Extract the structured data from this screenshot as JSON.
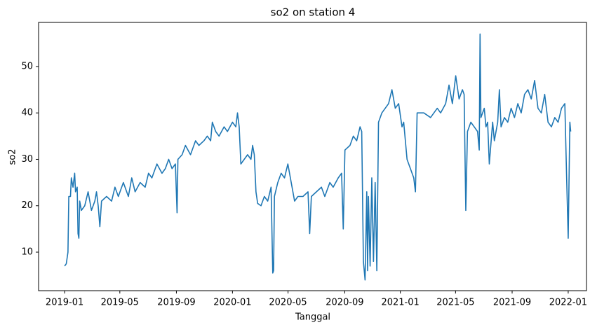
{
  "chart_data": {
    "type": "line",
    "title": "so2 on station 4",
    "x_label": "Tanggal",
    "y_label": "so2",
    "x": [
      2019.0,
      2019.01,
      2019.02,
      2019.025,
      2019.035,
      2019.04,
      2019.05,
      2019.06,
      2019.065,
      2019.075,
      2019.08,
      2019.085,
      2019.09,
      2019.1,
      2019.12,
      2019.14,
      2019.16,
      2019.18,
      2019.19,
      2019.2,
      2019.21,
      2019.22,
      2019.25,
      2019.28,
      2019.3,
      2019.32,
      2019.35,
      2019.38,
      2019.4,
      2019.42,
      2019.45,
      2019.48,
      2019.5,
      2019.52,
      2019.55,
      2019.58,
      2019.6,
      2019.62,
      2019.64,
      2019.66,
      2019.67,
      2019.675,
      2019.7,
      2019.72,
      2019.75,
      2019.78,
      2019.8,
      2019.83,
      2019.85,
      2019.87,
      2019.88,
      2019.9,
      2019.92,
      2019.95,
      2019.97,
      2020.0,
      2020.02,
      2020.03,
      2020.04,
      2020.05,
      2020.07,
      2020.09,
      2020.11,
      2020.12,
      2020.13,
      2020.14,
      2020.15,
      2020.17,
      2020.19,
      2020.21,
      2020.23,
      2020.24,
      2020.245,
      2020.25,
      2020.27,
      2020.29,
      2020.31,
      2020.33,
      2020.35,
      2020.37,
      2020.39,
      2020.42,
      2020.45,
      2020.46,
      2020.47,
      2020.5,
      2020.53,
      2020.55,
      2020.58,
      2020.6,
      2020.63,
      2020.65,
      2020.66,
      2020.67,
      2020.7,
      2020.72,
      2020.74,
      2020.76,
      2020.77,
      2020.78,
      2020.79,
      2020.8,
      2020.805,
      2020.81,
      2020.82,
      2020.83,
      2020.84,
      2020.85,
      2020.86,
      2020.87,
      2020.89,
      2020.91,
      2020.93,
      2020.95,
      2020.97,
      2020.99,
      2021.01,
      2021.02,
      2021.04,
      2021.06,
      2021.08,
      2021.09,
      2021.1,
      2021.14,
      2021.18,
      2021.22,
      2021.24,
      2021.27,
      2021.29,
      2021.31,
      2021.33,
      2021.35,
      2021.37,
      2021.38,
      2021.39,
      2021.4,
      2021.42,
      2021.44,
      2021.46,
      2021.47,
      2021.475,
      2021.48,
      2021.5,
      2021.51,
      2021.52,
      2021.53,
      2021.55,
      2021.56,
      2021.58,
      2021.59,
      2021.6,
      2021.62,
      2021.64,
      2021.66,
      2021.68,
      2021.7,
      2021.72,
      2021.74,
      2021.76,
      2021.78,
      2021.8,
      2021.82,
      2021.84,
      2021.86,
      2021.88,
      2021.9,
      2021.92,
      2021.94,
      2021.96,
      2021.98,
      2021.99,
      2022.0,
      2022.01,
      2022.015
    ],
    "series": [
      {
        "color": "#1f77b4",
        "values": [
          7,
          7.5,
          10,
          22,
          22,
          26,
          24,
          27,
          23,
          24,
          14,
          13,
          21,
          19,
          20,
          23,
          19,
          21,
          23,
          20,
          15.5,
          21,
          22,
          21,
          24,
          22,
          25,
          22,
          26,
          23,
          25,
          24,
          27,
          26,
          29,
          27,
          28,
          30,
          28,
          29,
          18.5,
          30,
          31,
          33,
          31,
          34,
          33,
          34,
          35,
          34,
          38,
          36,
          35,
          37,
          36,
          38,
          37,
          40,
          37,
          29,
          30,
          31,
          30,
          33,
          31,
          23,
          20.5,
          20,
          22,
          21,
          24,
          5.5,
          6,
          22,
          25,
          27,
          26,
          29,
          25,
          21,
          22,
          22,
          23,
          14,
          22,
          23,
          24,
          22,
          25,
          24,
          26,
          27,
          15,
          32,
          33,
          35,
          34,
          37,
          36,
          8,
          4,
          23,
          6,
          22,
          7,
          26,
          8,
          25,
          6,
          38,
          40,
          41,
          42,
          45,
          41,
          42,
          37,
          38,
          30,
          28,
          26,
          23,
          40,
          40,
          39,
          41,
          40,
          42,
          46,
          42,
          48,
          43,
          45,
          44,
          19,
          36,
          38,
          37,
          36,
          32,
          57,
          39,
          41,
          37,
          38,
          29,
          38,
          34,
          38,
          45,
          37,
          39,
          38,
          41,
          39,
          42,
          40,
          44,
          45,
          43,
          47,
          41,
          40,
          44,
          38,
          37,
          39,
          38,
          41,
          42,
          27,
          13,
          38,
          36
        ]
      }
    ],
    "xlim": [
      2018.845,
      2022.109
    ],
    "xticks": [
      {
        "value": 2019.0,
        "label": "2019-01"
      },
      {
        "value": 2019.329,
        "label": "2019-05"
      },
      {
        "value": 2019.666,
        "label": "2019-09"
      },
      {
        "value": 2020.0,
        "label": "2020-01"
      },
      {
        "value": 2020.331,
        "label": "2020-05"
      },
      {
        "value": 2020.669,
        "label": "2020-09"
      },
      {
        "value": 2021.0,
        "label": "2021-01"
      },
      {
        "value": 2021.329,
        "label": "2021-05"
      },
      {
        "value": 2021.666,
        "label": "2021-09"
      },
      {
        "value": 2022.0,
        "label": "2022-01"
      }
    ],
    "ylim": [
      1.7,
      59.5
    ],
    "yticks": [
      10,
      20,
      30,
      40,
      50
    ],
    "grid": false
  }
}
